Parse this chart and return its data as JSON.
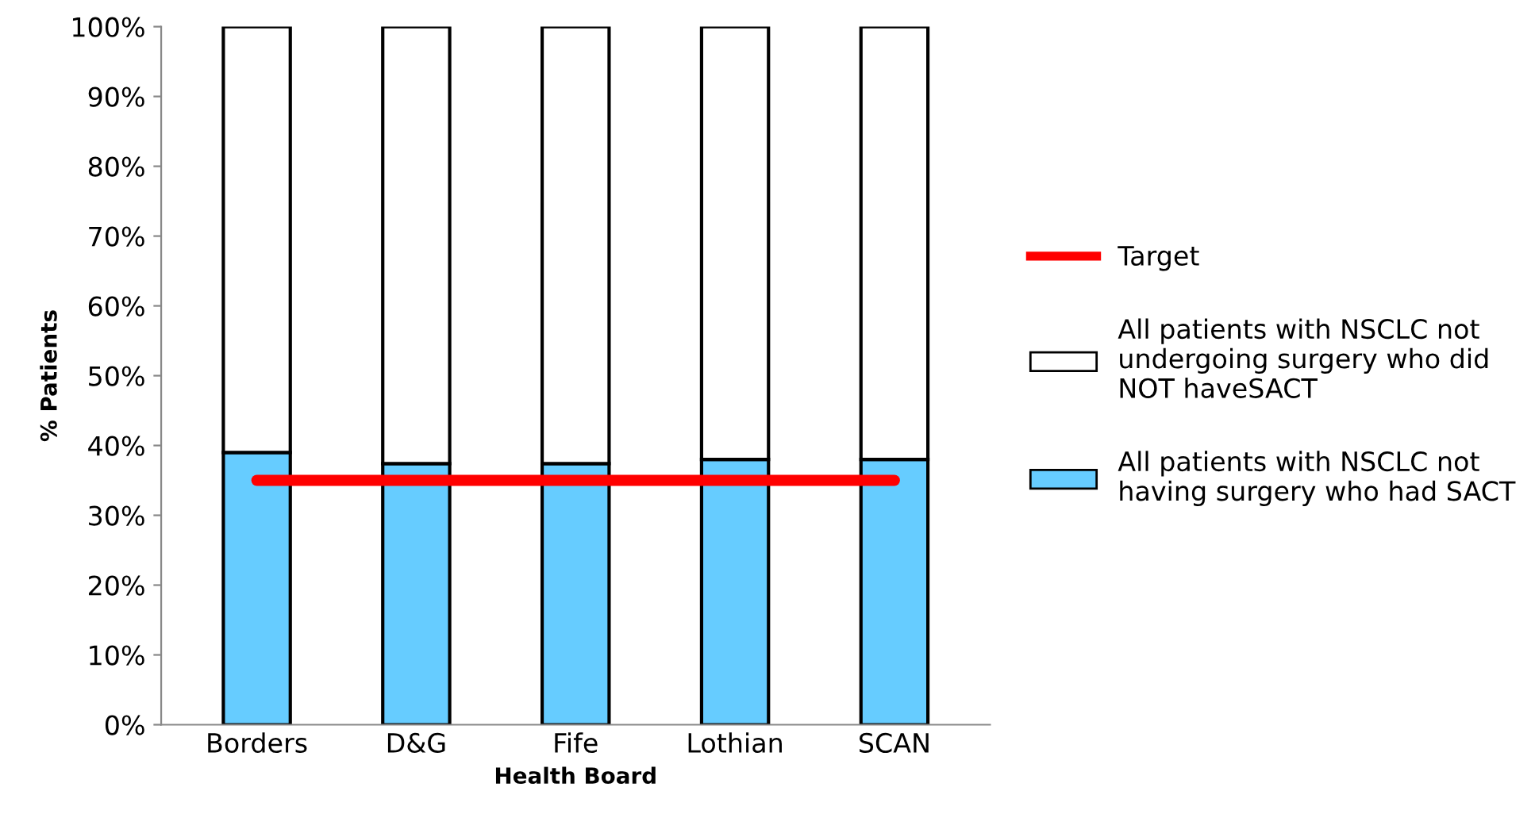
{
  "chart_data": {
    "type": "bar",
    "stacked": true,
    "xlabel": "Health Board",
    "ylabel": "% Patients",
    "categories": [
      "Borders",
      "D&G",
      "Fife",
      "Lothian",
      "SCAN"
    ],
    "series": [
      {
        "name": "All patients with NSCLC not having surgery who had SACT",
        "color": "#66ccff",
        "values": [
          39.0,
          37.4,
          37.4,
          38.0,
          38.0
        ]
      },
      {
        "name": "All patients with NSCLC not undergoing surgery who did NOT haveSACT",
        "color": "#ffffff",
        "values": [
          61.0,
          62.6,
          62.6,
          62.0,
          62.0
        ]
      },
      {
        "name": "Target",
        "type": "line",
        "color": "#ff0000",
        "values": [
          35,
          35,
          35,
          35,
          35
        ]
      }
    ],
    "ylim": [
      0,
      100
    ],
    "yticks": [
      {
        "value": 0,
        "label": "0%"
      },
      {
        "value": 10,
        "label": "10%"
      },
      {
        "value": 20,
        "label": "20%"
      },
      {
        "value": 30,
        "label": "30%"
      },
      {
        "value": 40,
        "label": "40%"
      },
      {
        "value": 50,
        "label": "50%"
      },
      {
        "value": 60,
        "label": "60%"
      },
      {
        "value": 70,
        "label": "70%"
      },
      {
        "value": 80,
        "label": "80%"
      },
      {
        "value": 90,
        "label": "90%"
      },
      {
        "value": 100,
        "label": "100%"
      }
    ],
    "grid": false,
    "legend": "right",
    "marker": "none",
    "line_style": "solid"
  }
}
